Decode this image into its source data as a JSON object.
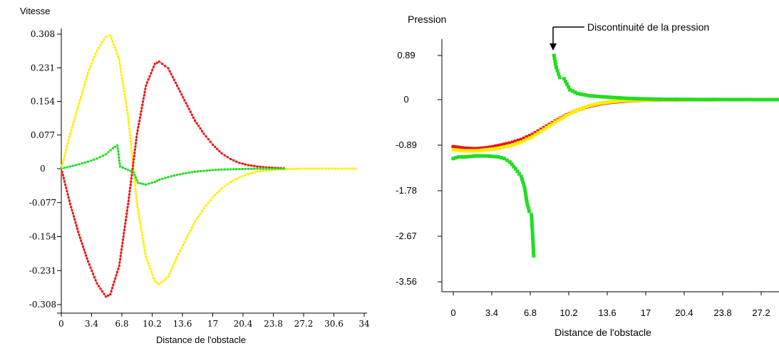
{
  "chart_data": [
    {
      "type": "line",
      "title": "Vitesse",
      "xlabel": "Distance de l'obstacle",
      "ylabel": "",
      "xlim": [
        0,
        34
      ],
      "ylim": [
        -0.308,
        0.308
      ],
      "x_ticks": [
        "0",
        "3.4",
        "6.8",
        "10.2",
        "13.6",
        "17",
        "20.4",
        "23.8",
        "27.2",
        "30.6",
        "34"
      ],
      "y_ticks": [
        "0.308",
        "0.231",
        "0.154",
        "0.077",
        "0",
        "-0.077",
        "-0.154",
        "-0.231",
        "-0.308"
      ],
      "grid": false,
      "series": [
        {
          "color": "#ffee00",
          "x": [
            0,
            1,
            2,
            3,
            4,
            5,
            5.5,
            6.5,
            7.5,
            8.5,
            9.5,
            10.5,
            11,
            12,
            13,
            14,
            15,
            16,
            17,
            18,
            19,
            20,
            21,
            22,
            23,
            24,
            25,
            27,
            30,
            33
          ],
          "y": [
            0,
            0.08,
            0.15,
            0.22,
            0.27,
            0.302,
            0.305,
            0.25,
            0.12,
            -0.08,
            -0.2,
            -0.255,
            -0.262,
            -0.245,
            -0.2,
            -0.16,
            -0.12,
            -0.09,
            -0.065,
            -0.045,
            -0.03,
            -0.02,
            -0.012,
            -0.007,
            -0.004,
            -0.002,
            -0.001,
            0,
            0,
            0
          ]
        },
        {
          "color": "#ee1111",
          "x": [
            0,
            1,
            2,
            3,
            4,
            5,
            5.5,
            6.5,
            7.5,
            8.5,
            9.5,
            10.5,
            11,
            12,
            13,
            14,
            15,
            16,
            17,
            18,
            19,
            20,
            21,
            22,
            23,
            24,
            25
          ],
          "y": [
            0,
            -0.08,
            -0.15,
            -0.21,
            -0.26,
            -0.29,
            -0.285,
            -0.22,
            -0.08,
            0.08,
            0.19,
            0.24,
            0.245,
            0.23,
            0.19,
            0.15,
            0.11,
            0.08,
            0.055,
            0.035,
            0.022,
            0.013,
            0.008,
            0.005,
            0.003,
            0.002,
            0.001
          ]
        },
        {
          "color": "#22dd22",
          "x": [
            0,
            1,
            2,
            3,
            4,
            5,
            5.8,
            6.3,
            6.6,
            8.1,
            8.6,
            9.5,
            10.5,
            11,
            12,
            13,
            14,
            15,
            16,
            17,
            18,
            19,
            20,
            21,
            22,
            23,
            24,
            25
          ],
          "y": [
            0,
            0.005,
            0.01,
            0.016,
            0.023,
            0.033,
            0.047,
            0.053,
            0.005,
            -0.008,
            -0.032,
            -0.036,
            -0.03,
            -0.025,
            -0.019,
            -0.014,
            -0.01,
            -0.007,
            -0.005,
            -0.003,
            -0.002,
            -0.0015,
            -0.001,
            -0.0005,
            0,
            0,
            0,
            0
          ]
        }
      ]
    },
    {
      "type": "line",
      "title": "Pression",
      "xlabel": "Distance de l'obstacle",
      "ylabel": "",
      "xlim": [
        0,
        30.6
      ],
      "ylim": [
        -3.56,
        0.89
      ],
      "x_ticks": [
        "0",
        "3.4",
        "6.8",
        "10.2",
        "13.6",
        "17",
        "20.4",
        "23.8",
        "27.2"
      ],
      "y_ticks": [
        "0.89",
        "0",
        "-0.89",
        "-1.78",
        "-2.67",
        "-3.56"
      ],
      "grid": false,
      "annotation": {
        "text": "Discontinuité de la pression",
        "x": 8.9,
        "y": 0.89
      },
      "series": [
        {
          "color": "#ee1111",
          "x": [
            0,
            1,
            2,
            3,
            4,
            5,
            6,
            7,
            8,
            9,
            10,
            11,
            12,
            13,
            14,
            15,
            16,
            17,
            18,
            20,
            22,
            25,
            28,
            30
          ],
          "y": [
            -0.92,
            -0.95,
            -0.96,
            -0.94,
            -0.9,
            -0.85,
            -0.78,
            -0.68,
            -0.55,
            -0.42,
            -0.3,
            -0.2,
            -0.13,
            -0.08,
            -0.05,
            -0.03,
            -0.015,
            -0.008,
            -0.004,
            -0.002,
            -0.001,
            0,
            0,
            0
          ]
        },
        {
          "color": "#ffee00",
          "x": [
            0,
            1,
            2,
            3,
            4,
            5,
            6,
            7,
            8,
            9,
            10,
            11,
            12,
            13,
            14,
            15,
            16,
            17,
            18,
            20,
            22,
            25,
            28,
            30
          ],
          "y": [
            -0.98,
            -1.0,
            -1.0,
            -0.98,
            -0.95,
            -0.9,
            -0.83,
            -0.72,
            -0.58,
            -0.44,
            -0.31,
            -0.2,
            -0.12,
            -0.07,
            -0.04,
            -0.02,
            -0.01,
            -0.005,
            -0.002,
            -0.001,
            0,
            0,
            0,
            0
          ]
        },
        {
          "color": "#22dd22",
          "x": [
            0,
            0.5,
            1,
            2,
            3,
            4,
            4.5,
            5,
            5.5,
            6,
            6.3,
            6.5,
            6.7,
            6.9,
            7,
            7.1
          ],
          "y": [
            -1.15,
            -1.12,
            -1.12,
            -1.1,
            -1.1,
            -1.12,
            -1.15,
            -1.22,
            -1.35,
            -1.5,
            -1.72,
            -2.0,
            -2.18,
            -2.25,
            -2.6,
            -3.05
          ]
        },
        {
          "color": "#22dd22",
          "x": [
            8.9,
            9.1,
            9.4,
            9.8,
            10.3,
            11,
            12,
            13,
            14,
            15,
            16,
            17,
            18,
            19,
            20,
            22,
            24,
            26,
            28,
            30
          ],
          "y": [
            0.89,
            0.65,
            0.45,
            0.42,
            0.2,
            0.12,
            0.08,
            0.06,
            0.045,
            0.03,
            0.02,
            0.015,
            0.01,
            0.007,
            0.005,
            0.003,
            0.002,
            0.001,
            0,
            0
          ]
        }
      ]
    }
  ]
}
